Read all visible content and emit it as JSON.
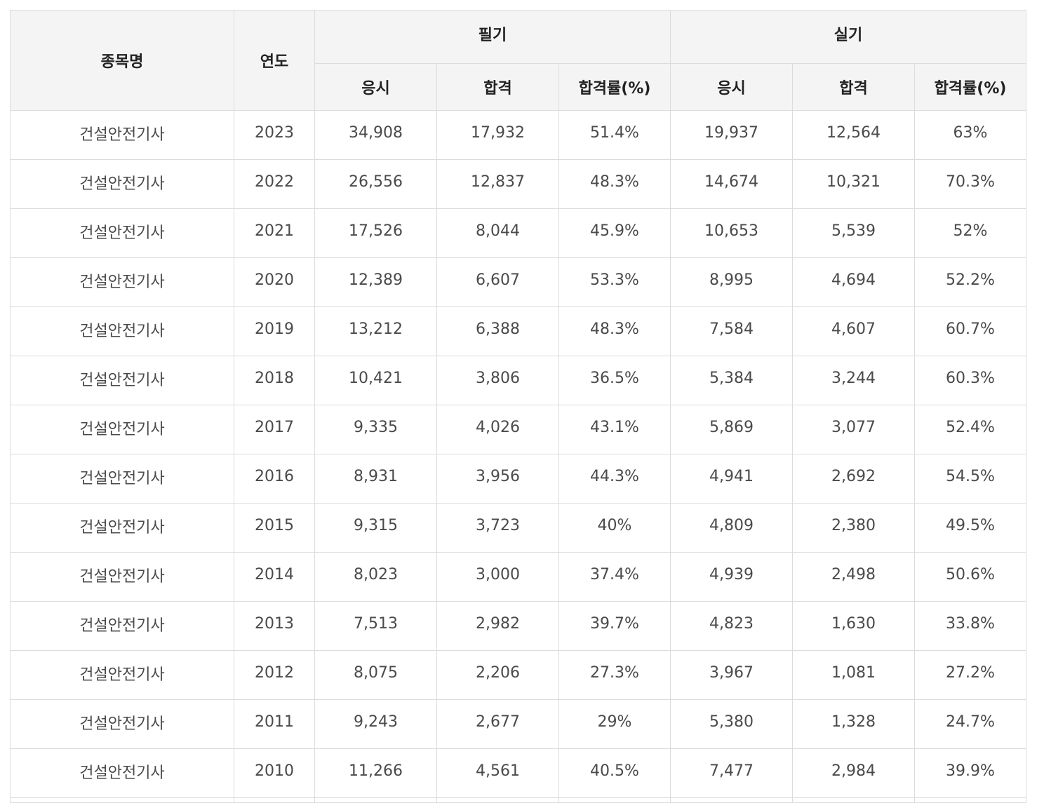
{
  "header": {
    "col_name": "종목명",
    "col_year": "연도",
    "group_written": "필기",
    "group_practical": "실기",
    "written": {
      "apply": "응시",
      "pass": "합격",
      "rate": "합격률(%)"
    },
    "practical": {
      "apply": "응시",
      "pass": "합격",
      "rate": "합격률(%)"
    }
  },
  "rows": [
    [
      "건설안전기사",
      "2023",
      "34,908",
      "17,932",
      "51.4%",
      "19,937",
      "12,564",
      "63%"
    ],
    [
      "건설안전기사",
      "2022",
      "26,556",
      "12,837",
      "48.3%",
      "14,674",
      "10,321",
      "70.3%"
    ],
    [
      "건설안전기사",
      "2021",
      "17,526",
      "8,044",
      "45.9%",
      "10,653",
      "5,539",
      "52%"
    ],
    [
      "건설안전기사",
      "2020",
      "12,389",
      "6,607",
      "53.3%",
      "8,995",
      "4,694",
      "52.2%"
    ],
    [
      "건설안전기사",
      "2019",
      "13,212",
      "6,388",
      "48.3%",
      "7,584",
      "4,607",
      "60.7%"
    ],
    [
      "건설안전기사",
      "2018",
      "10,421",
      "3,806",
      "36.5%",
      "5,384",
      "3,244",
      "60.3%"
    ],
    [
      "건설안전기사",
      "2017",
      "9,335",
      "4,026",
      "43.1%",
      "5,869",
      "3,077",
      "52.4%"
    ],
    [
      "건설안전기사",
      "2016",
      "8,931",
      "3,956",
      "44.3%",
      "4,941",
      "2,692",
      "54.5%"
    ],
    [
      "건설안전기사",
      "2015",
      "9,315",
      "3,723",
      "40%",
      "4,809",
      "2,380",
      "49.5%"
    ],
    [
      "건설안전기사",
      "2014",
      "8,023",
      "3,000",
      "37.4%",
      "4,939",
      "2,498",
      "50.6%"
    ],
    [
      "건설안전기사",
      "2013",
      "7,513",
      "2,982",
      "39.7%",
      "4,823",
      "1,630",
      "33.8%"
    ],
    [
      "건설안전기사",
      "2012",
      "8,075",
      "2,206",
      "27.3%",
      "3,967",
      "1,081",
      "27.2%"
    ],
    [
      "건설안전기사",
      "2011",
      "9,243",
      "2,677",
      "29%",
      "5,380",
      "1,328",
      "24.7%"
    ],
    [
      "건설안전기사",
      "2010",
      "11,266",
      "4,561",
      "40.5%",
      "7,477",
      "2,984",
      "39.9%"
    ]
  ]
}
